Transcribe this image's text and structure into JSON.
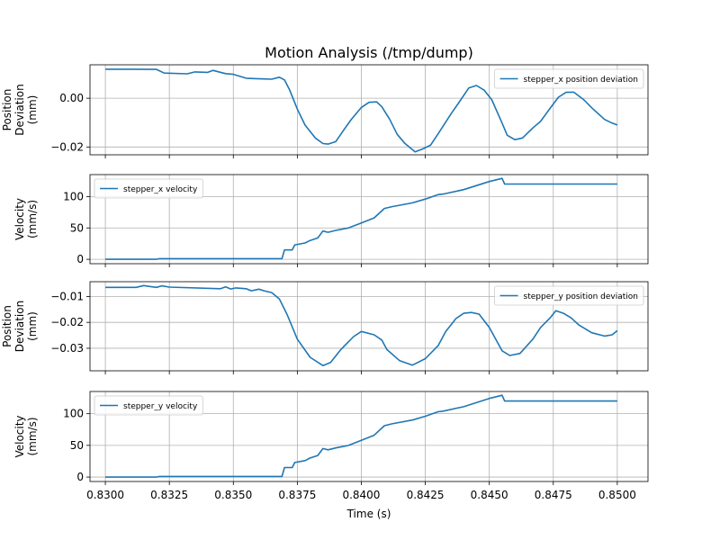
{
  "chart_data": {
    "type": "line",
    "title": "Motion Analysis (/tmp/dump)",
    "xlabel": "Time (s)",
    "xlim": [
      0.8294,
      0.8512
    ],
    "xticks": [
      "0.8300",
      "0.8325",
      "0.8350",
      "0.8375",
      "0.8400",
      "0.8425",
      "0.8450",
      "0.8475",
      "0.8500"
    ],
    "line_color": "#1f77b4",
    "grid": true,
    "subplots": [
      {
        "ylabel": [
          "Position",
          "Deviation",
          "(mm)"
        ],
        "ylim": [
          -0.0232,
          0.0137
        ],
        "yticks": [
          -0.02,
          0.0
        ],
        "ytick_labels": [
          "−0.02",
          "0.00"
        ],
        "legend": "stepper_x position deviation",
        "legend_loc": "upper right",
        "x": [
          0.83,
          0.831,
          0.832,
          0.8323,
          0.8332,
          0.8335,
          0.834,
          0.8342,
          0.8347,
          0.835,
          0.8355,
          0.8359,
          0.8362,
          0.8365,
          0.8368,
          0.837,
          0.8372,
          0.8375,
          0.8378,
          0.8382,
          0.8385,
          0.8387,
          0.839,
          0.8393,
          0.8396,
          0.84,
          0.8403,
          0.8406,
          0.8408,
          0.8411,
          0.8414,
          0.8417,
          0.8421,
          0.8424,
          0.8427,
          0.843,
          0.8435,
          0.8438,
          0.8442,
          0.8445,
          0.8448,
          0.8451,
          0.8455,
          0.8457,
          0.846,
          0.8463,
          0.8467,
          0.847,
          0.8474,
          0.8477,
          0.848,
          0.8483,
          0.8487,
          0.849,
          0.8495,
          0.8498,
          0.85
        ],
        "y": [
          0.0119,
          0.0119,
          0.0118,
          0.0103,
          0.01,
          0.0108,
          0.0106,
          0.0114,
          0.0101,
          0.0098,
          0.0082,
          0.008,
          0.0079,
          0.0078,
          0.0086,
          0.0075,
          0.0034,
          -0.0045,
          -0.011,
          -0.0163,
          -0.0186,
          -0.0188,
          -0.0178,
          -0.0132,
          -0.0088,
          -0.0038,
          -0.0017,
          -0.0015,
          -0.0035,
          -0.0085,
          -0.0148,
          -0.0185,
          -0.022,
          -0.0208,
          -0.0193,
          -0.0146,
          -0.0065,
          -0.002,
          0.0042,
          0.0052,
          0.0033,
          -0.0007,
          -0.0102,
          -0.0152,
          -0.017,
          -0.0163,
          -0.0122,
          -0.0095,
          -0.0038,
          0.0004,
          0.0024,
          0.0025,
          -0.0007,
          -0.0039,
          -0.0087,
          -0.0102,
          -0.011
        ]
      },
      {
        "ylabel": [
          "Velocity",
          "(mm/s)"
        ],
        "ylim": [
          -7,
          135
        ],
        "yticks": [
          0,
          50,
          100
        ],
        "ytick_labels": [
          "0",
          "50",
          "100"
        ],
        "legend": "stepper_x velocity",
        "legend_loc": "upper left",
        "x": [
          0.83,
          0.832,
          0.8321,
          0.8369,
          0.837,
          0.8373,
          0.8374,
          0.8378,
          0.838,
          0.8383,
          0.8385,
          0.8387,
          0.839,
          0.8395,
          0.84,
          0.8405,
          0.8409,
          0.8412,
          0.842,
          0.8425,
          0.843,
          0.8432,
          0.844,
          0.845,
          0.8455,
          0.8456,
          0.846,
          0.847,
          0.848,
          0.849,
          0.85
        ],
        "y": [
          0,
          0,
          1,
          1,
          15,
          15,
          23,
          26,
          30,
          34,
          45,
          43,
          46,
          50,
          58,
          66,
          81,
          84,
          90,
          96,
          103,
          104,
          111,
          124,
          129,
          120,
          120,
          120,
          120,
          120,
          120
        ]
      },
      {
        "ylabel": [
          "Position",
          "Deviation",
          "(mm)"
        ],
        "ylim": [
          -0.0387,
          -0.0043
        ],
        "yticks": [
          -0.03,
          -0.02,
          -0.01
        ],
        "ytick_labels": [
          "−0.03",
          "−0.02",
          "−0.01"
        ],
        "legend": "stepper_y position deviation",
        "legend_loc": "upper right",
        "x": [
          0.83,
          0.8312,
          0.8315,
          0.8317,
          0.832,
          0.8322,
          0.8325,
          0.8345,
          0.8347,
          0.8349,
          0.8351,
          0.8355,
          0.8357,
          0.836,
          0.8362,
          0.8365,
          0.8368,
          0.8371,
          0.8375,
          0.838,
          0.8385,
          0.8388,
          0.8392,
          0.8397,
          0.84,
          0.8405,
          0.8408,
          0.841,
          0.8415,
          0.842,
          0.8425,
          0.843,
          0.8433,
          0.8437,
          0.844,
          0.8443,
          0.8446,
          0.845,
          0.8455,
          0.8458,
          0.8462,
          0.8467,
          0.847,
          0.8474,
          0.8476,
          0.8479,
          0.8482,
          0.8485,
          0.849,
          0.8495,
          0.8498,
          0.85
        ],
        "y": [
          -0.0065,
          -0.0065,
          -0.0058,
          -0.0061,
          -0.0065,
          -0.0059,
          -0.0064,
          -0.007,
          -0.0063,
          -0.0071,
          -0.0067,
          -0.007,
          -0.0078,
          -0.0072,
          -0.0078,
          -0.0085,
          -0.011,
          -0.017,
          -0.0265,
          -0.0335,
          -0.0367,
          -0.0355,
          -0.0305,
          -0.0255,
          -0.0235,
          -0.0248,
          -0.0268,
          -0.0305,
          -0.0348,
          -0.0365,
          -0.034,
          -0.029,
          -0.0235,
          -0.0185,
          -0.0165,
          -0.0162,
          -0.0168,
          -0.022,
          -0.031,
          -0.0328,
          -0.032,
          -0.0265,
          -0.022,
          -0.018,
          -0.0155,
          -0.0165,
          -0.0183,
          -0.021,
          -0.024,
          -0.0253,
          -0.0248,
          -0.0232
        ]
      },
      {
        "ylabel": [
          "Velocity",
          "(mm/s)"
        ],
        "ylim": [
          -7,
          135
        ],
        "yticks": [
          0,
          50,
          100
        ],
        "ytick_labels": [
          "0",
          "50",
          "100"
        ],
        "legend": "stepper_y velocity",
        "legend_loc": "upper left",
        "x": [
          0.83,
          0.832,
          0.8321,
          0.8369,
          0.837,
          0.8373,
          0.8374,
          0.8378,
          0.838,
          0.8383,
          0.8385,
          0.8387,
          0.839,
          0.8395,
          0.84,
          0.8405,
          0.8409,
          0.8412,
          0.842,
          0.8425,
          0.843,
          0.8432,
          0.844,
          0.845,
          0.8455,
          0.8456,
          0.846,
          0.847,
          0.848,
          0.849,
          0.85
        ],
        "y": [
          0,
          0,
          1,
          1,
          15,
          15,
          23,
          26,
          30,
          34,
          45,
          43,
          46,
          50,
          58,
          66,
          81,
          84,
          90,
          96,
          103,
          104,
          111,
          124,
          129,
          120,
          120,
          120,
          120,
          120,
          120
        ]
      }
    ]
  }
}
